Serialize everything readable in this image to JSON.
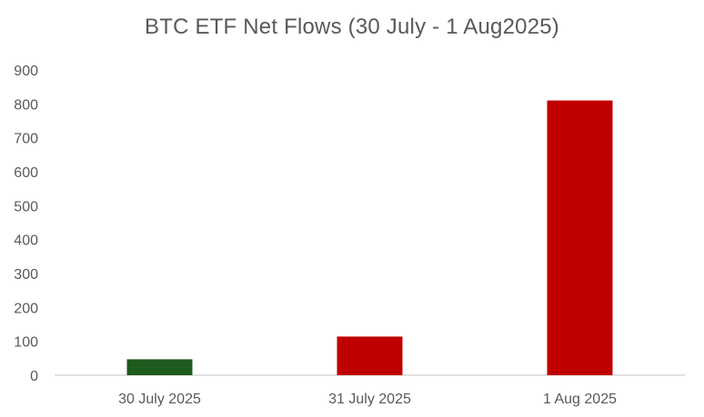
{
  "chart_data": {
    "type": "bar",
    "title": "BTC ETF Net Flows (30 July - 1 Aug2025)",
    "xlabel": "",
    "ylabel": "",
    "categories": [
      "30 July 2025",
      "31 July 2025",
      "1 Aug 2025"
    ],
    "values": [
      47,
      114,
      810
    ],
    "bar_colors": [
      "#1e5b1e",
      "#c00000",
      "#c00000"
    ],
    "ylim": [
      0,
      900
    ],
    "yticks": [
      0,
      100,
      200,
      300,
      400,
      500,
      600,
      700,
      800,
      900
    ],
    "grid": false,
    "legend": "none"
  }
}
